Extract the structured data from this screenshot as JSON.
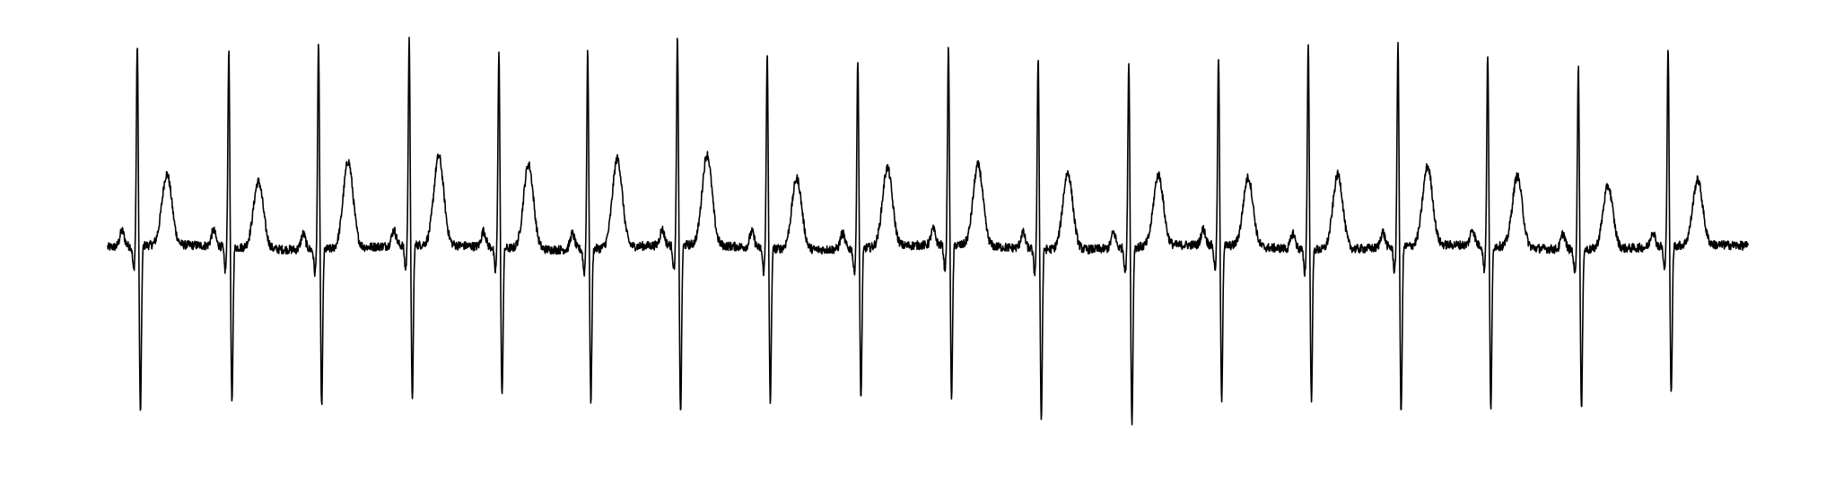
{
  "chart_data": {
    "type": "line",
    "title": "",
    "xlabel": "",
    "ylabel": "",
    "axes_visible": false,
    "grid": false,
    "legend": "none",
    "trace_color": "#000000",
    "background_color": "#ffffff",
    "xlim": [
      0,
      18.3
    ],
    "ylim": [
      -1.0,
      1.0
    ],
    "baseline": 0.0,
    "series": [
      {
        "beats": [
          {
            "t": 0.33,
            "r_peak": 0.98,
            "s_trough": -0.85,
            "t_wave": 0.36
          },
          {
            "t": 1.35,
            "r_peak": 0.95,
            "s_trough": -0.8,
            "t_wave": 0.34
          },
          {
            "t": 2.35,
            "r_peak": 1.0,
            "s_trough": -0.8,
            "t_wave": 0.44
          },
          {
            "t": 3.36,
            "r_peak": 0.99,
            "s_trough": -0.79,
            "t_wave": 0.45
          },
          {
            "t": 4.36,
            "r_peak": 0.95,
            "s_trough": -0.76,
            "t_wave": 0.43
          },
          {
            "t": 5.35,
            "r_peak": 0.96,
            "s_trough": -0.77,
            "t_wave": 0.45
          },
          {
            "t": 6.35,
            "r_peak": 1.0,
            "s_trough": -0.86,
            "t_wave": 0.46
          },
          {
            "t": 7.35,
            "r_peak": 0.94,
            "s_trough": -0.78,
            "t_wave": 0.36
          },
          {
            "t": 8.36,
            "r_peak": 0.92,
            "s_trough": -0.76,
            "t_wave": 0.4
          },
          {
            "t": 9.37,
            "r_peak": 0.96,
            "s_trough": -0.77,
            "t_wave": 0.41
          },
          {
            "t": 10.37,
            "r_peak": 0.93,
            "s_trough": -0.86,
            "t_wave": 0.39
          },
          {
            "t": 11.38,
            "r_peak": 0.9,
            "s_trough": -0.9,
            "t_wave": 0.36
          },
          {
            "t": 12.38,
            "r_peak": 0.91,
            "s_trough": -0.78,
            "t_wave": 0.35
          },
          {
            "t": 13.38,
            "r_peak": 1.0,
            "s_trough": -0.76,
            "t_wave": 0.38
          },
          {
            "t": 14.38,
            "r_peak": 0.99,
            "s_trough": -0.85,
            "t_wave": 0.4
          },
          {
            "t": 15.38,
            "r_peak": 0.93,
            "s_trough": -0.82,
            "t_wave": 0.36
          },
          {
            "t": 16.39,
            "r_peak": 0.89,
            "s_trough": -0.82,
            "t_wave": 0.32
          },
          {
            "t": 17.39,
            "r_peak": 0.97,
            "s_trough": -0.76,
            "t_wave": 0.33
          }
        ]
      }
    ]
  }
}
